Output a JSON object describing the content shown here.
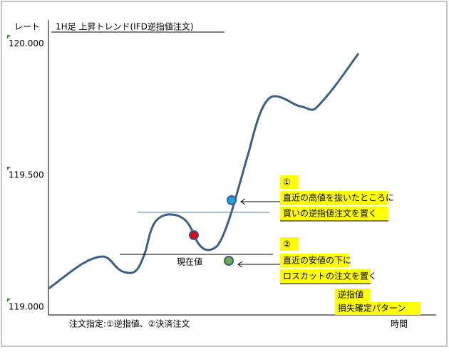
{
  "y_axis_label": "レート",
  "title": "1H足 上昇トレンド(IFD逆指値注文)",
  "yticks": [
    {
      "value": 120,
      "label": "120.000"
    },
    {
      "value": 119.5,
      "label": "119.500"
    },
    {
      "value": 119,
      "label": "119.000"
    }
  ],
  "ylim": [
    118.97,
    120.09
  ],
  "current_price_label": "現在値",
  "note1": {
    "number": "①",
    "lines": [
      "直近の高値を抜いたところに",
      "買いの逆指値注文を置く"
    ]
  },
  "note2": {
    "number": "②",
    "lines": [
      "直近の安値の下に",
      "ロスカットの注文を置く"
    ]
  },
  "pattern": [
    "逆指値",
    "損失確定パターン"
  ],
  "footer": "注文指定:①逆指値、②決済注文",
  "x_axis_label": "時間"
}
